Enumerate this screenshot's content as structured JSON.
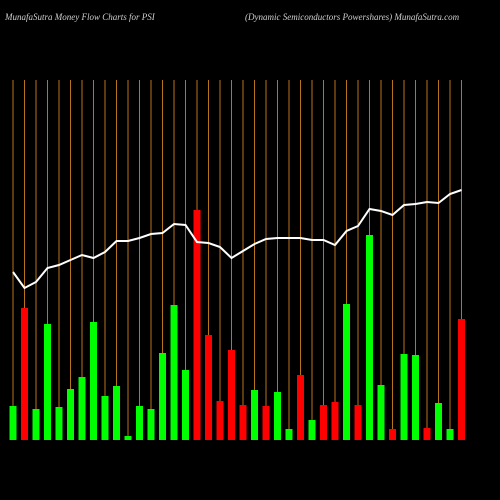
{
  "chart_data": {
    "type": "bar",
    "title": "MunafaSutra  Money Flow  Charts for PSI",
    "subtitle": "(Dynamic Semiconductors Powershares) MunafaSutra.com",
    "categories": [
      null,
      null,
      null,
      null,
      null,
      null,
      null,
      null,
      null,
      null,
      null,
      null,
      null,
      null,
      null,
      null,
      null,
      null,
      null,
      null,
      null,
      null,
      null,
      null,
      null,
      null,
      null,
      null,
      null,
      null,
      null,
      null,
      null,
      null,
      null,
      null,
      null,
      null,
      null,
      null
    ],
    "ylim": [
      0,
      360
    ],
    "grid": true,
    "grid_color": "#b8741a",
    "series": [
      {
        "type": "bar",
        "values": [
          34,
          132,
          31,
          116,
          33,
          51,
          63,
          118,
          44,
          54,
          4,
          34,
          31,
          87,
          135,
          70,
          230,
          105,
          39,
          90,
          35,
          50,
          34,
          48,
          11,
          65,
          20,
          35,
          38,
          136,
          35,
          205,
          55,
          11,
          86,
          85,
          12,
          37,
          11,
          121
        ],
        "colors": [
          "#00ff00",
          "#ff0000",
          "#00ff00",
          "#00ff00",
          "#00ff00",
          "#00ff00",
          "#00ff00",
          "#00ff00",
          "#00ff00",
          "#00ff00",
          "#00ff00",
          "#00ff00",
          "#00ff00",
          "#00ff00",
          "#00ff00",
          "#00ff00",
          "#ff0000",
          "#ff0000",
          "#ff0000",
          "#ff0000",
          "#ff0000",
          "#00ff00",
          "#ff0000",
          "#00ff00",
          "#00ff00",
          "#ff0000",
          "#00ff00",
          "#ff0000",
          "#ff0000",
          "#00ff00",
          "#ff0000",
          "#00ff00",
          "#00ff00",
          "#ff0000",
          "#00ff00",
          "#00ff00",
          "#ff0000",
          "#00ff00",
          "#00ff00",
          "#ff0000"
        ]
      },
      {
        "type": "line",
        "color": "#ffffff",
        "values": [
          168,
          152,
          158,
          172,
          175,
          180,
          185,
          182,
          188,
          199,
          199,
          202,
          206,
          207,
          216,
          215,
          198,
          197,
          193,
          182,
          189,
          196,
          201,
          202,
          202,
          202,
          200,
          200,
          195,
          209,
          214,
          231,
          229,
          225,
          235,
          236,
          238,
          237,
          246,
          250
        ]
      }
    ]
  }
}
